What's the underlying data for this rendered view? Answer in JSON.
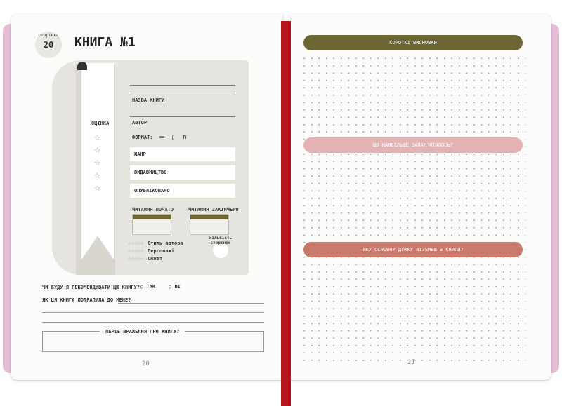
{
  "left_page": {
    "badge_label": "сторінка",
    "badge_number": "20",
    "title": "КНИГА №1",
    "rating_label": "ОЦІНКА",
    "book_title_label": "НАЗВА КНИГИ",
    "author_label": "АВТОР",
    "format_label": "ФОРМАТ:",
    "format_icons": [
      "paper-book-icon",
      "ebook-icon",
      "headphones-icon"
    ],
    "genre_label": "ЖАНР",
    "publisher_label": "ВИДАВНИЦТВО",
    "published_label": "ОПУБЛІКОВАНО",
    "reading_started_label": "ЧИТАННЯ ПОЧАТО",
    "reading_finished_label": "ЧИТАННЯ ЗАКІНЧЕНО",
    "criteria": [
      "Стиль автора",
      "Персонажі",
      "Сюжет"
    ],
    "pages_count_label": "кількість сторінок",
    "recommend_question": "ЧИ БУДУ Я РЕКОМЕНДУВАТИ ЦЮ КНИГУ?",
    "yes_label": "ТАК",
    "no_label": "НІ",
    "how_got_question": "ЯК ЦЯ КНИГА ПОТРАПИЛА ДО МЕНЕ?",
    "first_impression_label": "ПЕРШЕ ВРАЖЕННЯ ПРО КНИГУ?",
    "page_number": "20"
  },
  "right_page": {
    "banners": [
      {
        "label": "КОРОТКІ ВИСНОВКИ",
        "color": "#6b6633"
      },
      {
        "label": "ЩО НАЙБІЛЬШЕ ЗАПАМ'ЯТАЛОСЬ?",
        "color": "#e3b3b3"
      },
      {
        "label": "ЯКУ ОСНОВНУ ДУМКУ ВІЗЬМЕШ З КНИГИ?",
        "color": "#c97a6c"
      }
    ],
    "page_number": "21"
  },
  "colors": {
    "cover": "#e3bcd6",
    "ribbon": "#b4161c",
    "olive": "#6b6633"
  }
}
